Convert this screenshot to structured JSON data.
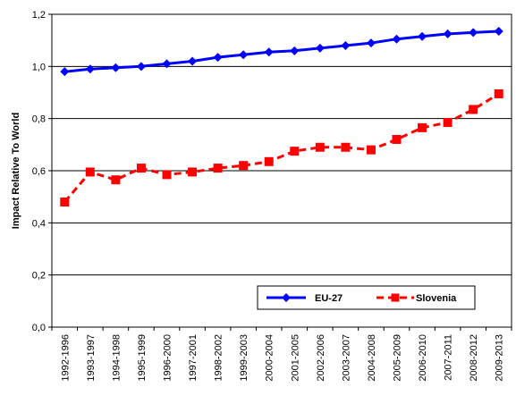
{
  "chart_data": {
    "type": "line",
    "title": "",
    "xlabel": "",
    "ylabel": "Impact Relative To World",
    "ylim": [
      0,
      1.2
    ],
    "yticks": [
      "0,0",
      "0,2",
      "0,4",
      "0,6",
      "0,8",
      "1,0",
      "1,2"
    ],
    "grid": "horizontal",
    "legend_position": "bottom-right",
    "categories": [
      "1992-1996",
      "1993-1997",
      "1994-1998",
      "1995-1999",
      "1996-2000",
      "1997-2001",
      "1998-2002",
      "1999-2003",
      "2000-2004",
      "2001-2005",
      "2002-2006",
      "2003-2007",
      "2004-2008",
      "2005-2009",
      "2006-2010",
      "2007-2011",
      "2008-2012",
      "2009-2013"
    ],
    "series": [
      {
        "name": "EU-27",
        "color": "#0000ff",
        "marker": "diamond",
        "line_style": "solid",
        "values": [
          0.98,
          0.99,
          0.995,
          1.0,
          1.01,
          1.02,
          1.035,
          1.045,
          1.055,
          1.06,
          1.07,
          1.08,
          1.09,
          1.105,
          1.115,
          1.125,
          1.13,
          1.135
        ]
      },
      {
        "name": "Slovenia",
        "color": "#ff0000",
        "marker": "square",
        "line_style": "dashed",
        "values": [
          0.48,
          0.595,
          0.565,
          0.61,
          0.585,
          0.595,
          0.61,
          0.62,
          0.635,
          0.675,
          0.69,
          0.69,
          0.68,
          0.72,
          0.765,
          0.785,
          0.835,
          0.895
        ]
      }
    ]
  }
}
